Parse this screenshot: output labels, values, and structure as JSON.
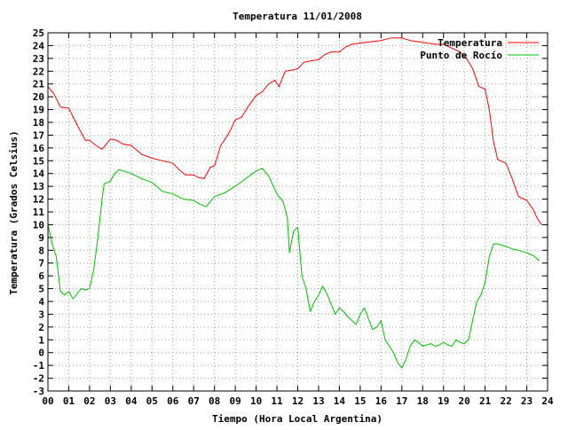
{
  "chart_data": {
    "type": "line",
    "title": "Temperatura 11/01/2008",
    "xlabel": "Tiempo (Hora Local Argentina)",
    "ylabel": "Temperatura (Grados Celsius)",
    "xlim": [
      0,
      24
    ],
    "ylim": [
      -3,
      25
    ],
    "x_ticks": [
      "00",
      "01",
      "02",
      "03",
      "04",
      "05",
      "06",
      "07",
      "08",
      "09",
      "10",
      "11",
      "12",
      "13",
      "14",
      "15",
      "16",
      "17",
      "18",
      "19",
      "20",
      "21",
      "22",
      "23",
      "24"
    ],
    "y_ticks": [
      "-3",
      "-2",
      "-1",
      "0",
      "1",
      "2",
      "3",
      "4",
      "5",
      "6",
      "7",
      "8",
      "9",
      "10",
      "11",
      "12",
      "13",
      "14",
      "15",
      "16",
      "17",
      "18",
      "19",
      "20",
      "21",
      "22",
      "23",
      "24",
      "25"
    ],
    "grid": true,
    "legend_position": "top-right",
    "series": [
      {
        "name": "Temperatura",
        "color": "#ff0000",
        "x": [
          0.0,
          0.3,
          0.6,
          1.0,
          1.4,
          1.8,
          2.0,
          2.3,
          2.6,
          3.0,
          3.3,
          3.6,
          4.0,
          4.5,
          5.0,
          5.5,
          6.0,
          6.3,
          6.6,
          7.0,
          7.2,
          7.5,
          7.8,
          8.0,
          8.3,
          8.6,
          8.8,
          9.0,
          9.3,
          9.6,
          10.0,
          10.3,
          10.6,
          10.9,
          11.1,
          11.4,
          11.8,
          12.0,
          12.3,
          12.6,
          13.0,
          13.3,
          13.6,
          14.0,
          14.3,
          14.6,
          15.0,
          15.5,
          16.0,
          16.5,
          17.0,
          17.4,
          17.8,
          18.2,
          18.6,
          19.0,
          19.4,
          19.8,
          20.1,
          20.4,
          20.7,
          21.0,
          21.2,
          21.4,
          21.6,
          22.0,
          22.3,
          22.6,
          23.0,
          23.3,
          23.5,
          23.7
        ],
        "y": [
          20.8,
          20.2,
          19.2,
          19.1,
          17.8,
          16.6,
          16.6,
          16.2,
          15.9,
          16.7,
          16.6,
          16.3,
          16.2,
          15.5,
          15.2,
          15.0,
          14.8,
          14.3,
          13.9,
          13.9,
          13.7,
          13.6,
          14.5,
          14.6,
          16.2,
          16.9,
          17.5,
          18.2,
          18.4,
          19.2,
          20.1,
          20.4,
          21.0,
          21.3,
          20.8,
          22.0,
          22.1,
          22.2,
          22.7,
          22.8,
          22.9,
          23.3,
          23.5,
          23.5,
          23.9,
          24.1,
          24.2,
          24.3,
          24.4,
          24.6,
          24.6,
          24.4,
          24.3,
          24.2,
          24.1,
          24.1,
          23.8,
          23.5,
          23.0,
          22.2,
          20.8,
          20.6,
          19.0,
          16.5,
          15.1,
          14.8,
          13.6,
          12.2,
          11.9,
          11.2,
          10.5,
          10.0
        ]
      },
      {
        "name": "Punto de Rocío",
        "color": "#00c000",
        "x": [
          0.0,
          0.2,
          0.4,
          0.6,
          0.8,
          1.0,
          1.2,
          1.4,
          1.6,
          1.8,
          2.0,
          2.2,
          2.4,
          2.6,
          2.7,
          3.0,
          3.2,
          3.4,
          3.6,
          4.0,
          4.5,
          5.0,
          5.5,
          6.0,
          6.5,
          7.0,
          7.3,
          7.6,
          8.0,
          8.5,
          9.0,
          9.5,
          10.0,
          10.3,
          10.6,
          11.0,
          11.3,
          11.5,
          11.6,
          11.8,
          12.0,
          12.2,
          12.4,
          12.6,
          12.8,
          13.0,
          13.2,
          13.4,
          13.6,
          13.8,
          14.0,
          14.2,
          14.4,
          14.6,
          14.8,
          15.0,
          15.2,
          15.4,
          15.6,
          15.8,
          16.0,
          16.2,
          16.4,
          16.6,
          16.8,
          17.0,
          17.2,
          17.4,
          17.6,
          17.8,
          18.0,
          18.2,
          18.4,
          18.6,
          18.8,
          19.0,
          19.2,
          19.4,
          19.6,
          19.8,
          20.0,
          20.2,
          20.4,
          20.6,
          20.8,
          21.0,
          21.2,
          21.4,
          21.6,
          21.8,
          22.0,
          22.3,
          22.6,
          23.0,
          23.3,
          23.6
        ],
        "y": [
          10.0,
          8.5,
          7.5,
          4.8,
          4.5,
          4.8,
          4.2,
          4.6,
          5.0,
          4.9,
          5.0,
          6.5,
          9.0,
          12.0,
          13.2,
          13.4,
          14.0,
          14.3,
          14.2,
          14.0,
          13.6,
          13.3,
          12.6,
          12.4,
          12.0,
          11.9,
          11.6,
          11.4,
          12.2,
          12.5,
          13.0,
          13.6,
          14.2,
          14.4,
          13.8,
          12.4,
          11.8,
          10.5,
          7.8,
          9.5,
          9.8,
          6.0,
          5.0,
          3.2,
          4.0,
          4.5,
          5.2,
          4.6,
          3.8,
          3.0,
          3.5,
          3.2,
          2.8,
          2.5,
          2.2,
          3.0,
          3.5,
          2.6,
          1.8,
          2.0,
          2.5,
          1.0,
          0.5,
          0.0,
          -0.8,
          -1.2,
          -0.5,
          0.5,
          1.0,
          0.8,
          0.5,
          0.6,
          0.7,
          0.5,
          0.6,
          0.8,
          0.6,
          0.5,
          1.0,
          0.8,
          0.7,
          1.0,
          2.5,
          4.0,
          4.5,
          5.5,
          7.5,
          8.5,
          8.5,
          8.4,
          8.3,
          8.1,
          8.0,
          7.8,
          7.6,
          7.2
        ]
      }
    ]
  }
}
